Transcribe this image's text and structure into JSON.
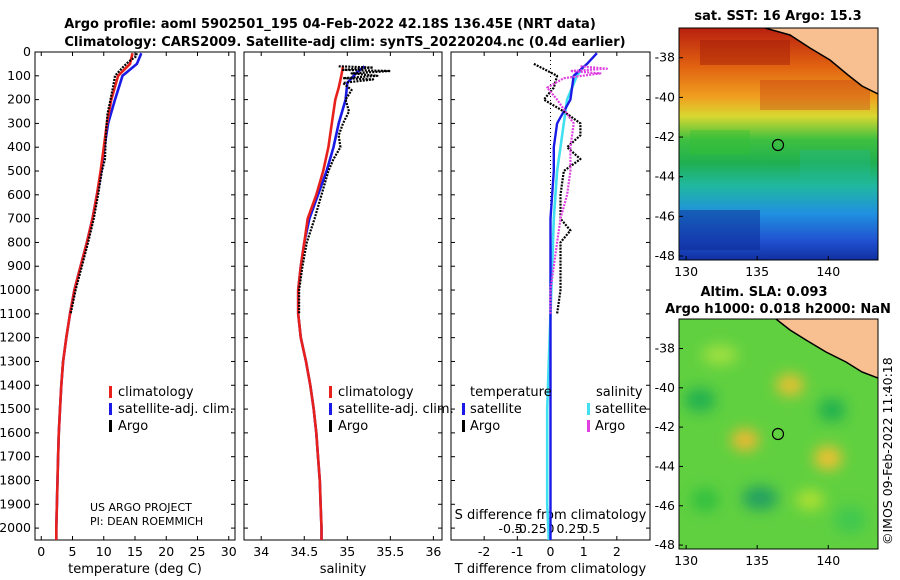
{
  "titles": {
    "line1": "Argo profile: aoml 5902501_195 04-Feb-2022 42.18S 136.45E (NRT data)",
    "line2": "Climatology: CARS2009. Satellite-adj clim: synTS_20220204.nc (0.4d earlier)",
    "sst": "sat. SST: 16 Argo: 15.3",
    "sla1": "Altim. SLA: 0.093",
    "sla2": "Argo h1000: 0.018 h2000: NaN"
  },
  "credit": {
    "line1": "US ARGO PROJECT",
    "line2": "PI: DEAN ROEMMICH"
  },
  "watermark": "©IMOS 09-Feb-2022 11:40:18",
  "legend_profile": {
    "clim": "climatology",
    "sat": "satellite-adj. clim.",
    "argo": "Argo"
  },
  "legend_diff": {
    "temperature": "temperature",
    "salinity": "salinity",
    "satellite": "satellite",
    "argo": "Argo"
  },
  "colors": {
    "clim": "#e8201c",
    "sat": "#1a1ae6",
    "argo": "#000000",
    "t_sat": "#1a1ae6",
    "s_sat": "#40e0f0",
    "s_argo": "#e040e0"
  },
  "chart_data": [
    {
      "type": "line",
      "xlabel": "temperature (deg C)",
      "ylabel": "",
      "xlim": [
        -1,
        31
      ],
      "ylim": [
        2050,
        0
      ],
      "xticks": [
        0,
        5,
        10,
        15,
        20,
        25,
        30
      ],
      "yticks": [
        0,
        100,
        200,
        300,
        400,
        500,
        600,
        700,
        800,
        900,
        1000,
        1100,
        1200,
        1300,
        1400,
        1500,
        1600,
        1700,
        1800,
        1900,
        2000
      ],
      "series": [
        {
          "name": "climatology",
          "points": [
            [
              14.6,
              5
            ],
            [
              14.2,
              50
            ],
            [
              12.3,
              100
            ],
            [
              11.2,
              200
            ],
            [
              10.5,
              300
            ],
            [
              10.0,
              400
            ],
            [
              9.5,
              500
            ],
            [
              8.9,
              600
            ],
            [
              8.2,
              700
            ],
            [
              7.3,
              800
            ],
            [
              6.3,
              900
            ],
            [
              5.3,
              1000
            ],
            [
              4.6,
              1100
            ],
            [
              4.0,
              1200
            ],
            [
              3.5,
              1300
            ],
            [
              3.2,
              1400
            ],
            [
              3.0,
              1500
            ],
            [
              2.8,
              1600
            ],
            [
              2.7,
              1700
            ],
            [
              2.6,
              1800
            ],
            [
              2.5,
              1900
            ],
            [
              2.4,
              2000
            ],
            [
              2.4,
              2050
            ]
          ]
        },
        {
          "name": "satellite-adj. clim.",
          "points": [
            [
              16.0,
              5
            ],
            [
              15.3,
              50
            ],
            [
              13.0,
              100
            ],
            [
              11.8,
              200
            ],
            [
              10.7,
              300
            ],
            [
              10.1,
              400
            ],
            [
              9.6,
              500
            ],
            [
              8.9,
              600
            ],
            [
              8.2,
              700
            ],
            [
              7.3,
              800
            ],
            [
              6.3,
              900
            ],
            [
              5.3,
              1000
            ],
            [
              4.6,
              1100
            ],
            [
              4.0,
              1200
            ],
            [
              3.5,
              1300
            ],
            [
              3.2,
              1400
            ],
            [
              3.0,
              1500
            ],
            [
              2.8,
              1600
            ],
            [
              2.7,
              1700
            ],
            [
              2.6,
              1800
            ],
            [
              2.5,
              1900
            ],
            [
              2.4,
              2000
            ],
            [
              2.4,
              2050
            ]
          ]
        },
        {
          "name": "Argo",
          "points": [
            [
              15.3,
              5
            ],
            [
              15.1,
              20
            ],
            [
              14.0,
              40
            ],
            [
              13.2,
              60
            ],
            [
              12.5,
              80
            ],
            [
              11.8,
              100
            ],
            [
              11.6,
              130
            ],
            [
              11.3,
              170
            ],
            [
              11.0,
              210
            ],
            [
              10.6,
              260
            ],
            [
              10.4,
              320
            ],
            [
              10.3,
              380
            ],
            [
              10.2,
              450
            ],
            [
              9.7,
              500
            ],
            [
              9.1,
              600
            ],
            [
              8.4,
              700
            ],
            [
              7.5,
              800
            ],
            [
              6.5,
              900
            ],
            [
              5.5,
              1000
            ],
            [
              4.7,
              1100
            ]
          ]
        }
      ]
    },
    {
      "type": "line",
      "xlabel": "salinity",
      "ylabel": "",
      "xlim": [
        33.8,
        36.1
      ],
      "ylim": [
        2050,
        0
      ],
      "xticks": [
        34,
        34.5,
        35,
        35.5,
        36
      ],
      "xticklabels": [
        "34",
        "34.5",
        "35",
        "35.5",
        "36"
      ],
      "series": [
        {
          "name": "climatology",
          "points": [
            [
              34.95,
              60
            ],
            [
              34.93,
              100
            ],
            [
              34.9,
              150
            ],
            [
              34.86,
              200
            ],
            [
              34.82,
              300
            ],
            [
              34.78,
              400
            ],
            [
              34.72,
              500
            ],
            [
              34.64,
              600
            ],
            [
              34.54,
              700
            ],
            [
              34.5,
              800
            ],
            [
              34.46,
              900
            ],
            [
              34.43,
              1000
            ],
            [
              34.43,
              1100
            ],
            [
              34.46,
              1200
            ],
            [
              34.52,
              1300
            ],
            [
              34.57,
              1400
            ],
            [
              34.61,
              1500
            ],
            [
              34.64,
              1600
            ],
            [
              34.66,
              1700
            ],
            [
              34.68,
              1800
            ],
            [
              34.69,
              1900
            ],
            [
              34.7,
              2000
            ],
            [
              34.7,
              2050
            ]
          ]
        },
        {
          "name": "satellite-adj. clim.",
          "points": [
            [
              35.2,
              60
            ],
            [
              35.1,
              90
            ],
            [
              35.0,
              130
            ],
            [
              34.98,
              200
            ],
            [
              34.9,
              300
            ],
            [
              34.84,
              400
            ],
            [
              34.76,
              500
            ],
            [
              34.66,
              600
            ],
            [
              34.56,
              700
            ],
            [
              34.5,
              800
            ],
            [
              34.46,
              900
            ],
            [
              34.43,
              1000
            ],
            [
              34.43,
              1100
            ],
            [
              34.46,
              1200
            ],
            [
              34.52,
              1300
            ],
            [
              34.57,
              1400
            ],
            [
              34.61,
              1500
            ],
            [
              34.64,
              1600
            ],
            [
              34.66,
              1700
            ],
            [
              34.68,
              1800
            ],
            [
              34.69,
              1900
            ],
            [
              34.7,
              2000
            ],
            [
              34.7,
              2050
            ]
          ]
        },
        {
          "name": "Argo",
          "points": [
            [
              34.9,
              60
            ],
            [
              35.3,
              65
            ],
            [
              34.95,
              75
            ],
            [
              35.5,
              80
            ],
            [
              35.05,
              90
            ],
            [
              35.35,
              100
            ],
            [
              34.95,
              110
            ],
            [
              35.3,
              115
            ],
            [
              34.95,
              130
            ],
            [
              35.05,
              160
            ],
            [
              34.98,
              200
            ],
            [
              35.02,
              250
            ],
            [
              34.95,
              300
            ],
            [
              34.9,
              350
            ],
            [
              34.92,
              400
            ],
            [
              34.84,
              450
            ],
            [
              34.78,
              500
            ],
            [
              34.7,
              600
            ],
            [
              34.62,
              700
            ],
            [
              34.53,
              800
            ],
            [
              34.48,
              900
            ],
            [
              34.44,
              1000
            ],
            [
              34.44,
              1100
            ]
          ]
        }
      ]
    },
    {
      "type": "line",
      "xlabel": "T difference from climatology",
      "xlabel_top": "S difference from climatology",
      "ylabel": "",
      "xlim": [
        -3,
        3
      ],
      "ylim": [
        2050,
        0
      ],
      "xticks": [
        -2,
        -1,
        0,
        1,
        2
      ],
      "xticks_s": [
        -0.5,
        -0.25,
        0,
        0.25,
        0.5
      ],
      "xticklabels_s": [
        "-0.5",
        "-0.25",
        "0",
        "0.25",
        "0.5"
      ],
      "series": [
        {
          "name": "temperature satellite",
          "points": [
            [
              1.4,
              5
            ],
            [
              1.1,
              50
            ],
            [
              0.7,
              100
            ],
            [
              0.6,
              200
            ],
            [
              0.2,
              300
            ],
            [
              0.1,
              400
            ],
            [
              0.1,
              500
            ],
            [
              0.0,
              700
            ],
            [
              0.0,
              900
            ],
            [
              0.0,
              1100
            ],
            [
              0.0,
              1300
            ],
            [
              0.0,
              1500
            ],
            [
              0.0,
              1700
            ],
            [
              0.0,
              1900
            ],
            [
              0.0,
              2050
            ]
          ]
        },
        {
          "name": "salinity satellite",
          "points": [
            [
              1.0,
              60
            ],
            [
              0.8,
              100
            ],
            [
              0.5,
              200
            ],
            [
              0.4,
              300
            ],
            [
              0.3,
              400
            ],
            [
              0.2,
              500
            ],
            [
              0.1,
              700
            ],
            [
              0.05,
              900
            ],
            [
              0.0,
              1100
            ],
            [
              -0.05,
              1300
            ],
            [
              -0.1,
              1500
            ],
            [
              -0.1,
              1700
            ],
            [
              -0.1,
              1900
            ],
            [
              -0.05,
              2050
            ]
          ]
        },
        {
          "name": "temperature Argo",
          "points": [
            [
              -0.5,
              50
            ],
            [
              0.2,
              100
            ],
            [
              0.1,
              150
            ],
            [
              -0.2,
              200
            ],
            [
              0.4,
              250
            ],
            [
              0.9,
              300
            ],
            [
              0.9,
              350
            ],
            [
              0.5,
              400
            ],
            [
              0.9,
              450
            ],
            [
              0.4,
              500
            ],
            [
              0.3,
              600
            ],
            [
              0.3,
              700
            ],
            [
              0.6,
              750
            ],
            [
              0.3,
              800
            ],
            [
              0.3,
              900
            ],
            [
              0.3,
              1000
            ],
            [
              0.2,
              1100
            ]
          ]
        },
        {
          "name": "salinity Argo",
          "points": [
            [
              0.9,
              60
            ],
            [
              1.7,
              70
            ],
            [
              0.6,
              80
            ],
            [
              1.5,
              90
            ],
            [
              0.4,
              110
            ],
            [
              -0.1,
              150
            ],
            [
              0.2,
              200
            ],
            [
              0.5,
              260
            ],
            [
              0.7,
              300
            ],
            [
              0.6,
              400
            ],
            [
              0.6,
              500
            ],
            [
              0.5,
              600
            ],
            [
              0.3,
              700
            ],
            [
              0.2,
              800
            ],
            [
              0.1,
              900
            ],
            [
              0.0,
              1000
            ],
            [
              0.0,
              1100
            ]
          ]
        }
      ]
    },
    {
      "type": "heatmap",
      "title": "sat. SST: 16 Argo: 15.3",
      "xlim": [
        129.5,
        143.5
      ],
      "ylim": [
        -48.2,
        -36.5
      ],
      "xticks": [
        130,
        135,
        140
      ],
      "yticks": [
        -38,
        -40,
        -42,
        -44,
        -46,
        -48
      ],
      "argo_position": [
        136.45,
        -42.18
      ]
    },
    {
      "type": "heatmap",
      "title": "Altim. SLA: 0.093 / Argo h1000: 0.018 h2000: NaN",
      "xlim": [
        129.5,
        143.5
      ],
      "ylim": [
        -48.2,
        -36.5
      ],
      "xticks": [
        130,
        135,
        140
      ],
      "yticks": [
        -38,
        -40,
        -42,
        -44,
        -46,
        -48
      ],
      "argo_position": [
        136.45,
        -42.18
      ]
    }
  ]
}
